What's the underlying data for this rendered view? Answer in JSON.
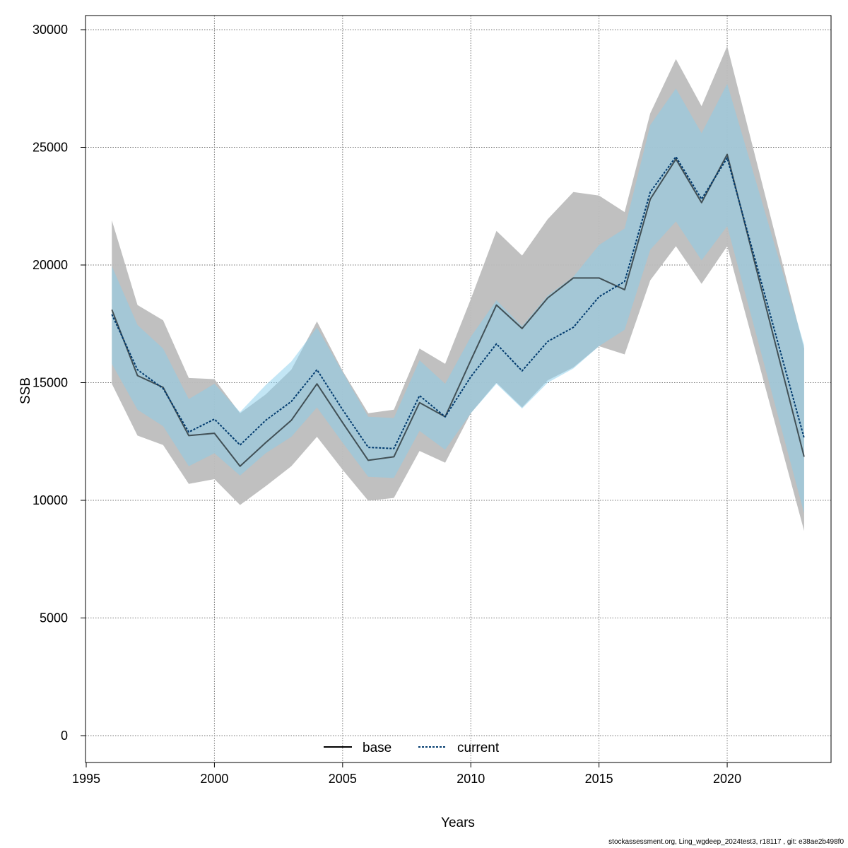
{
  "chart_data": {
    "type": "line",
    "xlabel": "Years",
    "ylabel": "SSB",
    "xlim": [
      1995,
      2024
    ],
    "ylim": [
      0,
      30000
    ],
    "x_ticks": [
      1995,
      2000,
      2005,
      2010,
      2015,
      2020
    ],
    "y_ticks": [
      0,
      5000,
      10000,
      15000,
      20000,
      25000,
      30000
    ],
    "grid": true,
    "legend_position": "bottom-center",
    "x": [
      1996,
      1997,
      1998,
      1999,
      2000,
      2001,
      2002,
      2003,
      2004,
      2005,
      2006,
      2007,
      2008,
      2009,
      2010,
      2011,
      2012,
      2013,
      2014,
      2015,
      2016,
      2017,
      2018,
      2019,
      2020,
      2023
    ],
    "series": [
      {
        "name": "base",
        "color": "#000000",
        "line_style": "solid",
        "band_color": "#bdbdbd",
        "values": [
          18100,
          15300,
          14800,
          12750,
          12850,
          11450,
          12450,
          13400,
          14950,
          13300,
          11700,
          11850,
          14150,
          13550,
          15950,
          18300,
          17300,
          18600,
          19450,
          19450,
          18950,
          22800,
          24500,
          22650,
          24700,
          11850
        ],
        "lower": [
          14950,
          12750,
          12350,
          10700,
          10900,
          9800,
          10600,
          11450,
          12700,
          11300,
          9980,
          10100,
          12100,
          11600,
          13700,
          15000,
          13950,
          15100,
          15650,
          16550,
          16200,
          19350,
          20800,
          19200,
          20800,
          8700
        ],
        "upper": [
          21900,
          18300,
          17650,
          15200,
          15150,
          13700,
          14500,
          15550,
          17600,
          15500,
          13700,
          13850,
          16450,
          15800,
          18550,
          21450,
          20400,
          21950,
          23100,
          22950,
          22250,
          26450,
          28750,
          26750,
          29300,
          16450
        ]
      },
      {
        "name": "current",
        "color": "#003a6e",
        "line_style": "dotted",
        "band_color": "#87ceeb",
        "values": [
          17900,
          15550,
          14750,
          12900,
          13450,
          12350,
          13400,
          14200,
          15550,
          13850,
          12250,
          12200,
          14450,
          13550,
          15250,
          16650,
          15500,
          16750,
          17350,
          18650,
          19300,
          23100,
          24600,
          22800,
          24550,
          12650
        ],
        "lower": [
          15800,
          13850,
          13150,
          11450,
          12000,
          11050,
          12000,
          12700,
          13950,
          12450,
          11000,
          10950,
          12950,
          12150,
          13700,
          14950,
          13900,
          15000,
          15600,
          16550,
          17250,
          20650,
          21850,
          20200,
          21650,
          9450
        ],
        "upper": [
          19950,
          17450,
          16450,
          14300,
          14950,
          13750,
          14900,
          15900,
          17350,
          15450,
          13550,
          13500,
          15950,
          14950,
          16950,
          18500,
          17400,
          18700,
          19500,
          20850,
          21550,
          25950,
          27500,
          25600,
          27700,
          16600
        ]
      }
    ]
  },
  "footer_text": "stockassessment.org, Ling_wgdeep_2024test3, r18117 , git: e38ae2b498f0"
}
